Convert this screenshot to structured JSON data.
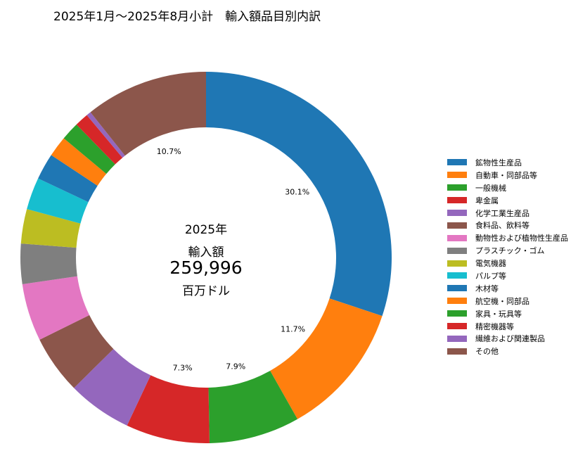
{
  "chart_data": {
    "type": "pie",
    "title": "2025年1月～2025年8月小計　輸入額品目別内訳",
    "center_text": {
      "year": "2025年",
      "label": "輸入額",
      "value": "259,996",
      "unit": "百万ドル"
    },
    "legend_position": "right",
    "slices": [
      {
        "label": "鉱物性生産品",
        "value": 30.1,
        "color": "#1f77b4",
        "pct_label": "30.1%"
      },
      {
        "label": "自動車・同部品等",
        "value": 11.7,
        "color": "#ff7f0e",
        "pct_label": "11.7%"
      },
      {
        "label": "一般機械",
        "value": 7.9,
        "color": "#2ca02c",
        "pct_label": "7.9%"
      },
      {
        "label": "卑金属",
        "value": 7.3,
        "color": "#d62728",
        "pct_label": "7.3%"
      },
      {
        "label": "化学工業生産品",
        "value": 5.6,
        "color": "#9467bd"
      },
      {
        "label": "食料品、飲料等",
        "value": 5.1,
        "color": "#8c564b"
      },
      {
        "label": "動物性および植物性生産品",
        "value": 5.0,
        "color": "#e377c2"
      },
      {
        "label": "プラスチック・ゴム",
        "value": 3.5,
        "color": "#7f7f7f"
      },
      {
        "label": "電気機器",
        "value": 3.0,
        "color": "#bcbd22"
      },
      {
        "label": "パルプ等",
        "value": 2.8,
        "color": "#17becf"
      },
      {
        "label": "木材等",
        "value": 2.3,
        "color": "#1f77b4"
      },
      {
        "label": "航空機・同部品",
        "value": 1.8,
        "color": "#ff7f0e"
      },
      {
        "label": "家具・玩具等",
        "value": 1.6,
        "color": "#2ca02c"
      },
      {
        "label": "精密機器等",
        "value": 1.2,
        "color": "#d62728"
      },
      {
        "label": "繊維および関連製品",
        "value": 0.4,
        "color": "#9467bd"
      },
      {
        "label": "その他",
        "value": 10.7,
        "color": "#8c564b",
        "pct_label": "10.7%"
      }
    ]
  }
}
